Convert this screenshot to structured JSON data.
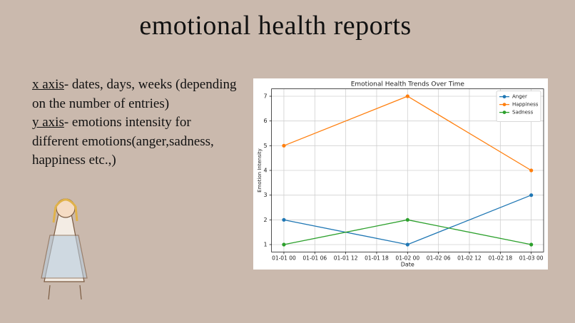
{
  "header": {
    "title": "emotional health reports"
  },
  "body": [
    {
      "term": "x axis",
      "text": "- dates, days, weeks (depending on the number of entries)"
    },
    {
      "term": "y axis",
      "text": "- emotions intensity for different emotions(anger,sadness, happiness etc.,)"
    }
  ],
  "chart_data": {
    "type": "line",
    "title": "Emotional Health Trends Over Time",
    "x_label": "Date",
    "y_label": "Emotion Intensity",
    "x": [
      0,
      24,
      48
    ],
    "xlim": [
      -2.4,
      50.4
    ],
    "xticks": [
      {
        "value": 0,
        "label": "01-01 00"
      },
      {
        "value": 6,
        "label": "01-01 06"
      },
      {
        "value": 12,
        "label": "01-01 12"
      },
      {
        "value": 18,
        "label": "01-01 18"
      },
      {
        "value": 24,
        "label": "01-02 00"
      },
      {
        "value": 30,
        "label": "01-02 06"
      },
      {
        "value": 36,
        "label": "01-02 12"
      },
      {
        "value": 42,
        "label": "01-02 18"
      },
      {
        "value": 48,
        "label": "01-03 00"
      }
    ],
    "ylim": [
      0.7,
      7.3
    ],
    "yticks": [
      1,
      2,
      3,
      4,
      5,
      6,
      7
    ],
    "grid": true,
    "legend": "upper right",
    "series": [
      {
        "name": "Anger",
        "color": "#1f77b4",
        "values": [
          2,
          1,
          3
        ]
      },
      {
        "name": "Happiness",
        "color": "#ff7f0e",
        "values": [
          5,
          7,
          4
        ]
      },
      {
        "name": "Sadness",
        "color": "#2ca02c",
        "values": [
          1,
          2,
          1
        ]
      }
    ]
  }
}
